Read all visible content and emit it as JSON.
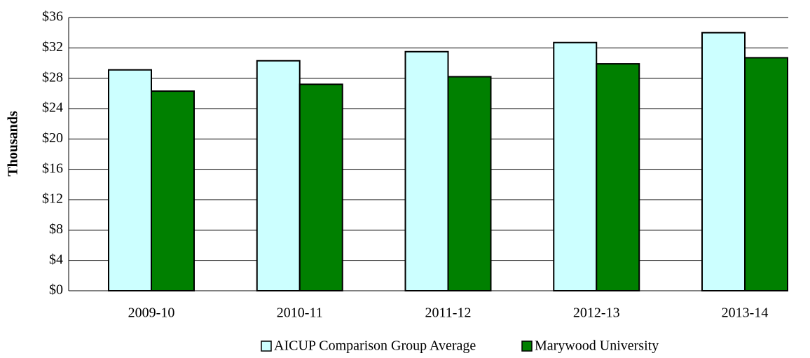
{
  "chart_data": {
    "type": "bar",
    "y_label": "Thousands",
    "categories": [
      "2009-10",
      "2010-11",
      "2011-12",
      "2012-13",
      "2013-14"
    ],
    "series": [
      {
        "name": "AICUP Comparison Group Average",
        "color": "#ccffff",
        "values": [
          29.1,
          30.3,
          31.5,
          32.7,
          34.0
        ]
      },
      {
        "name": "Marywood University",
        "color": "#008000",
        "values": [
          26.3,
          27.2,
          28.2,
          29.9,
          30.7
        ]
      }
    ],
    "ylim": [
      0,
      36
    ],
    "yticks": [
      {
        "value": 0,
        "label": "$0"
      },
      {
        "value": 4,
        "label": "$4"
      },
      {
        "value": 8,
        "label": "$8"
      },
      {
        "value": 12,
        "label": "$12"
      },
      {
        "value": 16,
        "label": "$16"
      },
      {
        "value": 20,
        "label": "$20"
      },
      {
        "value": 24,
        "label": "$24"
      },
      {
        "value": 28,
        "label": "$28"
      },
      {
        "value": 32,
        "label": "$32"
      },
      {
        "value": 36,
        "label": "$36"
      }
    ],
    "grid": true
  }
}
